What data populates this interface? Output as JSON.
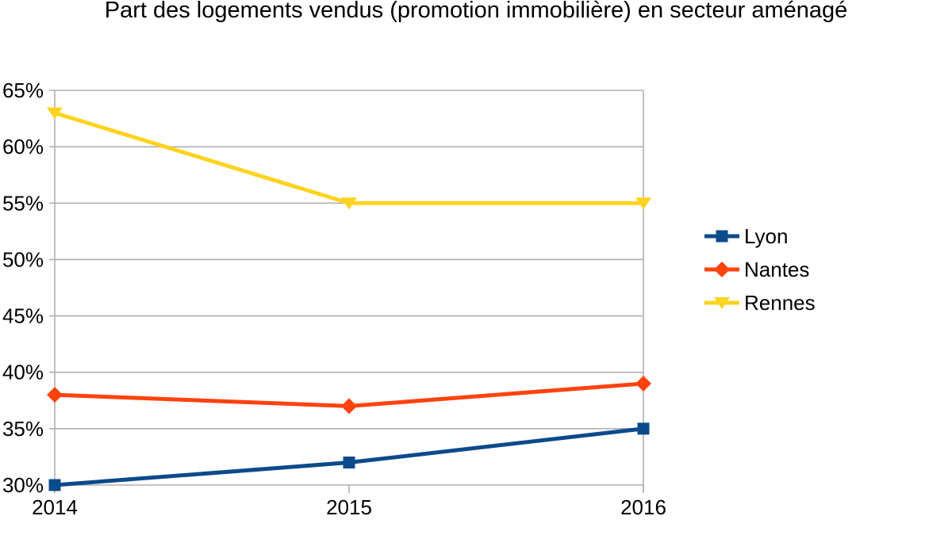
{
  "chart_data": {
    "type": "line",
    "title": "Part des logements vendus (promotion immobilière) en secteur aménagé",
    "categories": [
      "2014",
      "2015",
      "2016"
    ],
    "series": [
      {
        "name": "Lyon",
        "values": [
          30,
          32,
          35
        ],
        "color": "#0b4a8b",
        "marker": "square"
      },
      {
        "name": "Nantes",
        "values": [
          38,
          37,
          39
        ],
        "color": "#ff420e",
        "marker": "diamond"
      },
      {
        "name": "Rennes",
        "values": [
          63,
          55,
          55
        ],
        "color": "#ffd320",
        "marker": "triangle-down"
      }
    ],
    "xlabel": "",
    "ylabel": "",
    "ylim": [
      30,
      65
    ],
    "ytick_step": 5,
    "ytick_labels": [
      "30%",
      "35%",
      "40%",
      "45%",
      "50%",
      "55%",
      "60%",
      "65%"
    ],
    "grid": true,
    "legend_position": "right"
  },
  "colors": {
    "grid": "#b0b0b0",
    "text": "#000000",
    "background": "#ffffff"
  }
}
